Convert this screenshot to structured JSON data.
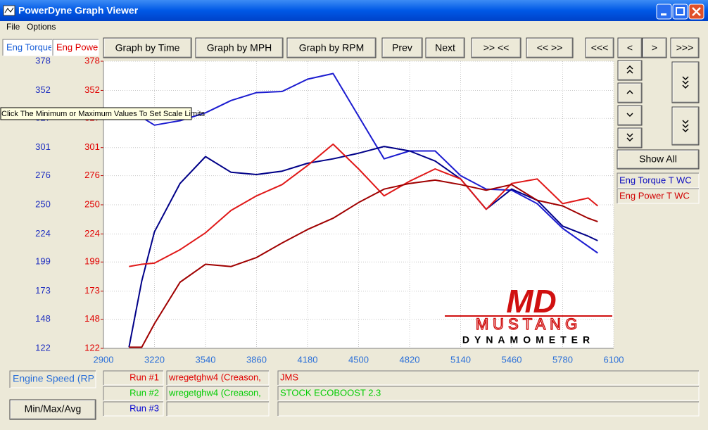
{
  "window": {
    "title": "PowerDyne Graph Viewer",
    "menu": [
      "File",
      "Options"
    ]
  },
  "toolbar": {
    "channels": [
      "Eng Torque",
      "Eng Power"
    ],
    "buttons": [
      "Graph by Time",
      "Graph by MPH",
      "Graph by RPM",
      "Prev",
      "Next",
      ">> <<",
      "<< >>",
      "<<<",
      "<",
      ">",
      ">>>"
    ]
  },
  "side_panel": {
    "show_all": "Show All"
  },
  "tooltip": "Click The Minimum or Maximum Values To Set Scale Limits",
  "logo": {
    "mark": "MD",
    "name": "MUSTANG",
    "subtitle": "DYNAMOMETER"
  },
  "chart_data": {
    "type": "line",
    "x_label": "Engine Speed (RPM)",
    "legend": [
      {
        "name": "Eng Torque T WC",
        "color": "#1010c0"
      },
      {
        "name": "Eng Power T WC",
        "color": "#d00000"
      }
    ],
    "x": [
      3060,
      3140,
      3220,
      3380,
      3540,
      3700,
      3860,
      4020,
      4180,
      4340,
      4500,
      4660,
      4820,
      4980,
      5140,
      5300,
      5460,
      5620,
      5780,
      5940,
      6000
    ],
    "series": [
      {
        "color": "#1c1cd0",
        "values": [
          null,
          328,
          321,
          325,
          332,
          343,
          350,
          351,
          362,
          367,
          329,
          291,
          298,
          298,
          276,
          264,
          263,
          251,
          229,
          213,
          207
        ]
      },
      {
        "color": "#000088",
        "values": [
          123,
          182,
          226,
          269,
          293,
          279,
          277,
          280,
          287,
          291,
          296,
          302,
          298,
          289,
          273,
          246,
          264,
          254,
          231,
          222,
          218
        ]
      },
      {
        "color": "#e01818",
        "axis": "y2",
        "values": [
          195,
          197,
          198,
          210,
          225,
          245,
          258,
          268,
          285,
          304,
          282,
          258,
          271,
          282,
          273,
          246,
          269,
          273,
          251,
          256,
          249
        ]
      },
      {
        "color": "#a00000",
        "axis": "y2",
        "values": [
          123,
          123,
          144,
          181,
          197,
          195,
          203,
          216,
          228,
          238,
          252,
          264,
          269,
          272,
          268,
          263,
          268,
          254,
          249,
          238,
          235
        ]
      }
    ],
    "xlim": [
      2900,
      6100
    ],
    "xticks": [
      2900,
      3220,
      3540,
      3860,
      4180,
      4500,
      4820,
      5140,
      5460,
      5780,
      6100
    ],
    "ylim": [
      122,
      378
    ],
    "yticks": [
      122,
      148,
      173,
      199,
      224,
      250,
      276,
      301,
      327,
      352,
      378
    ],
    "y2lim": [
      122,
      378
    ],
    "y2ticks": [
      122,
      148,
      173,
      199,
      224,
      250,
      276,
      301,
      327,
      352,
      378
    ],
    "grid": true
  },
  "runs": [
    {
      "label": "Run #1",
      "color": "#e00000",
      "file": "wregetghw4 (Creason,",
      "note": "JMS"
    },
    {
      "label": "Run #2",
      "color": "#00cc00",
      "file": "wregetghw4 (Creason,",
      "note": "STOCK ECOBOOST 2.3"
    },
    {
      "label": "Run #3",
      "color": "#0000d0"
    }
  ],
  "summary_button": "Min/Max/Avg"
}
